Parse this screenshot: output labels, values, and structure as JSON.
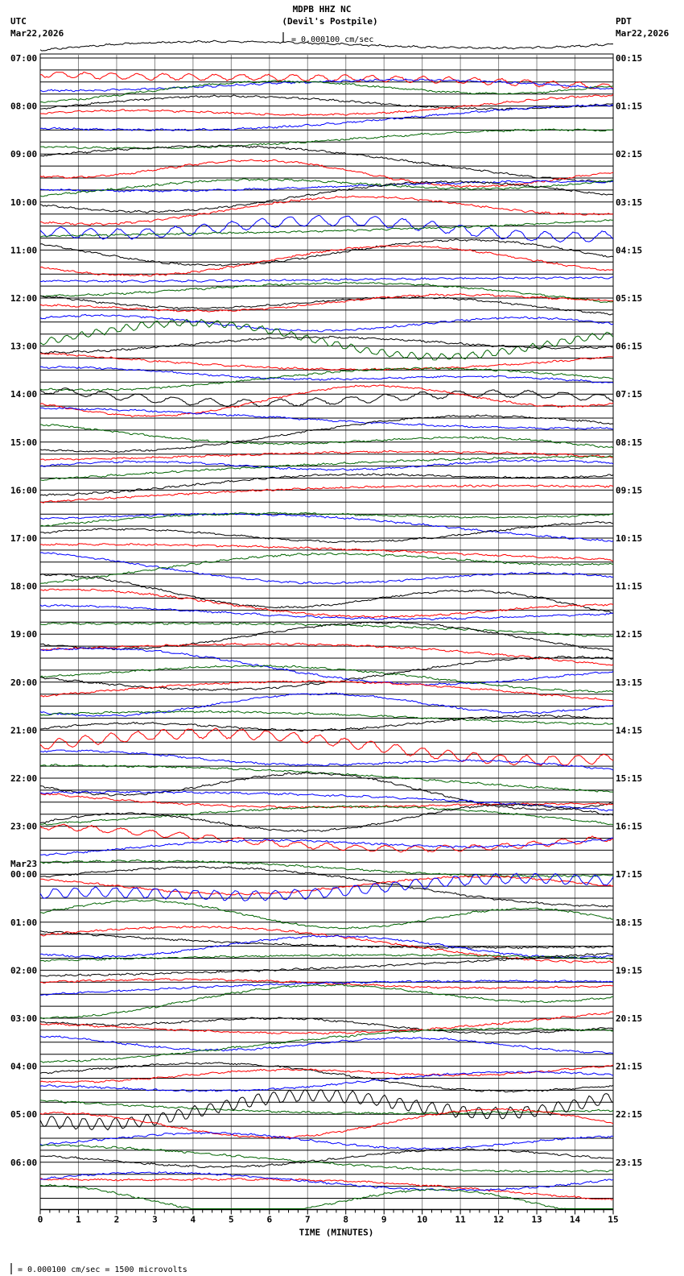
{
  "header": {
    "station": "MDPB HHZ NC",
    "location": "(Devil's Postpile)",
    "scale": "= 0.000100 cm/sec",
    "left_tz": "UTC",
    "left_date": "Mar22,2026",
    "right_tz": "PDT",
    "right_date": "Mar22,2026"
  },
  "footer": {
    "scale_note": "= 0.000100 cm/sec =    1500 microvolts"
  },
  "chart_data": {
    "type": "line",
    "title": "MDPB HHZ NC (Devil's Postpile)",
    "xlabel": "TIME (MINUTES)",
    "xlim": [
      0,
      15
    ],
    "x_ticks": [
      "0",
      "1",
      "2",
      "3",
      "4",
      "5",
      "6",
      "7",
      "8",
      "9",
      "10",
      "11",
      "12",
      "13",
      "14",
      "15"
    ],
    "traces_per_hour": 4,
    "trace_colors": [
      "#000000",
      "#ff0000",
      "#0000ff",
      "#006400"
    ],
    "left_labels": [
      "07:00",
      "08:00",
      "09:00",
      "10:00",
      "11:00",
      "12:00",
      "13:00",
      "14:00",
      "15:00",
      "16:00",
      "17:00",
      "18:00",
      "19:00",
      "20:00",
      "21:00",
      "22:00",
      "23:00",
      "Mar23\n00:00",
      "01:00",
      "02:00",
      "03:00",
      "04:00",
      "05:00",
      "06:00"
    ],
    "left_date_change": "Mar23",
    "right_labels": [
      "00:15",
      "01:15",
      "02:15",
      "03:15",
      "04:15",
      "05:15",
      "06:15",
      "07:15",
      "08:15",
      "09:15",
      "10:15",
      "11:15",
      "12:15",
      "13:15",
      "14:15",
      "15:15",
      "16:15",
      "17:15",
      "18:15",
      "19:15",
      "20:15",
      "21:15",
      "22:15",
      "23:15"
    ]
  }
}
